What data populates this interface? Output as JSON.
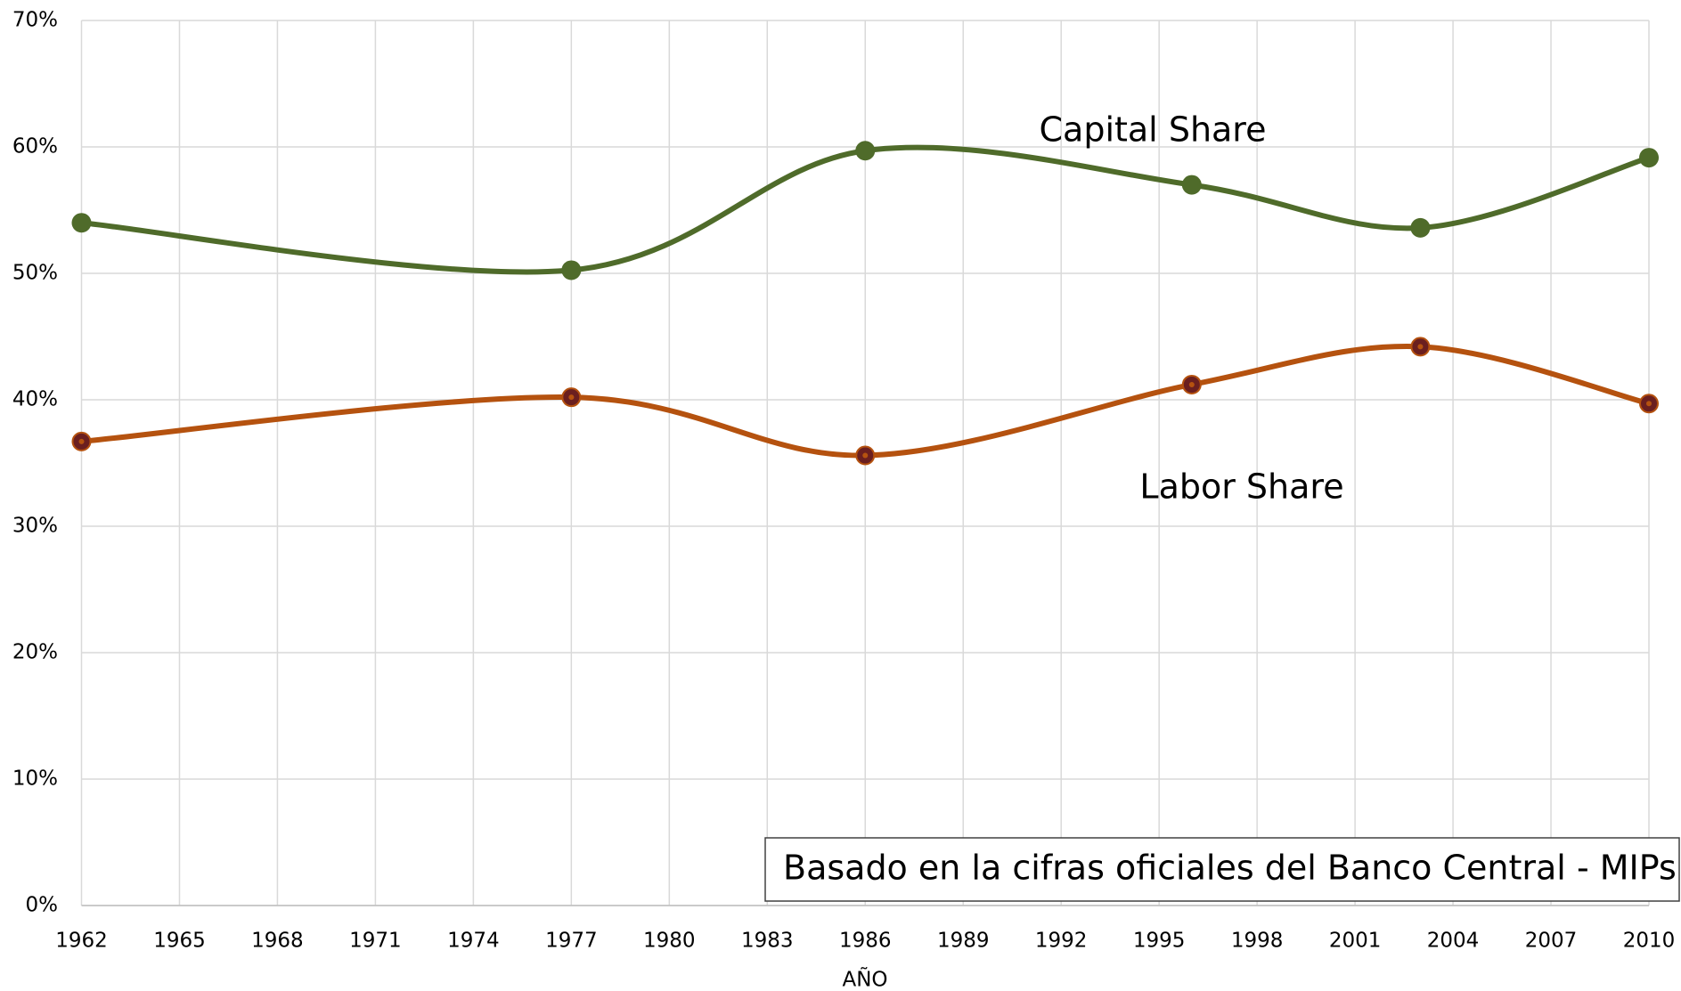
{
  "chart_data": {
    "type": "line",
    "x_label": "AÑO",
    "x": [
      1962,
      1977,
      1986,
      1996,
      2003,
      2010
    ],
    "series": [
      {
        "name": "Capital Share",
        "color": "#4f6b2a",
        "values": [
          54.0,
          50.25,
          59.7,
          57.0,
          53.6,
          59.15
        ]
      },
      {
        "name": "Labor Share",
        "color": "#b5520f",
        "values": [
          36.7,
          40.2,
          35.6,
          41.2,
          44.2,
          39.7
        ]
      }
    ],
    "annotations": [
      "Basado en la cifras oficiales del Banco Central - MIPs"
    ],
    "xlim": [
      1962,
      2010
    ],
    "xticks": [
      1962,
      1965,
      1968,
      1971,
      1974,
      1977,
      1980,
      1983,
      1986,
      1989,
      1992,
      1995,
      1998,
      2001,
      2004,
      2007,
      2010
    ],
    "ylim": [
      0,
      70
    ],
    "yticks": [
      {
        "value": 0,
        "label": "0%"
      },
      {
        "value": 10,
        "label": "10%"
      },
      {
        "value": 20,
        "label": "20%"
      },
      {
        "value": 30,
        "label": "30%"
      },
      {
        "value": 40,
        "label": "40%"
      },
      {
        "value": 50,
        "label": "50%"
      },
      {
        "value": 60,
        "label": "60%"
      },
      {
        "value": 70,
        "label": "70%"
      }
    ],
    "grid": true,
    "smooth": true
  }
}
